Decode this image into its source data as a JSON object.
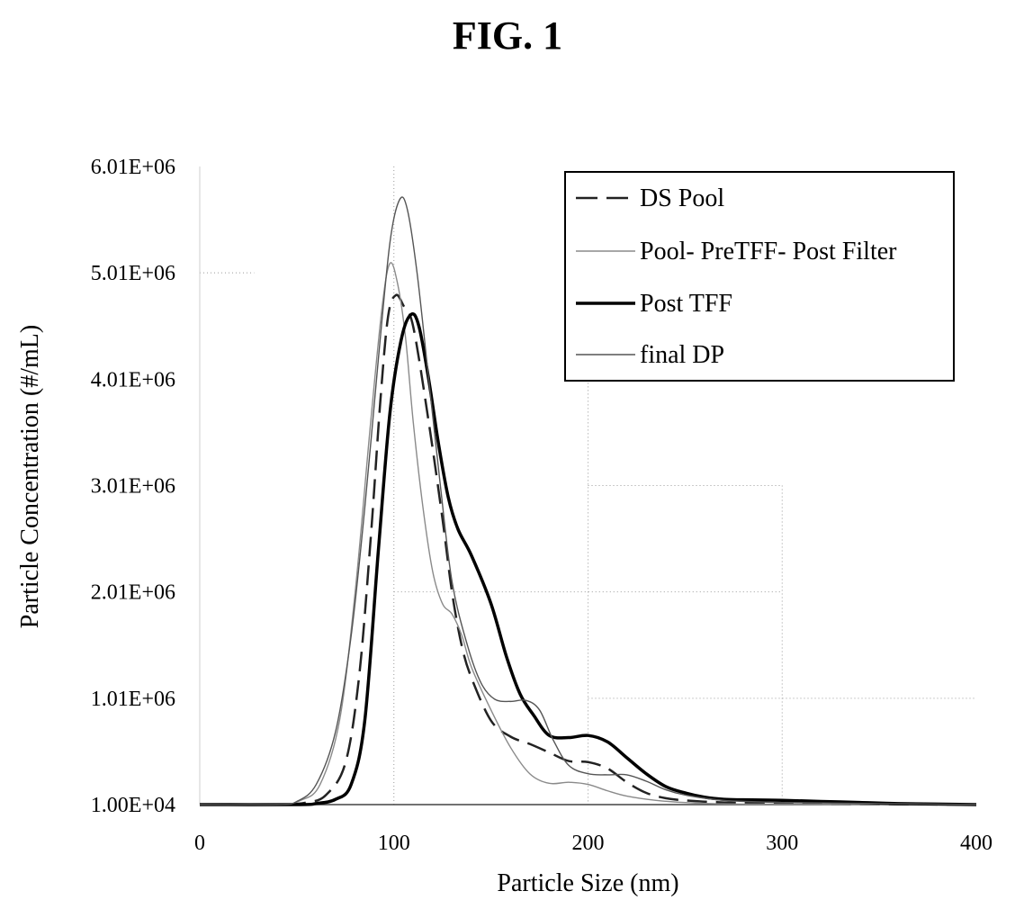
{
  "figure": {
    "title": "FIG. 1"
  },
  "chart_data": {
    "type": "line",
    "xlabel": "Particle Size (nm)",
    "ylabel": "Particle Concentration (#/mL)",
    "xlim": [
      0,
      400
    ],
    "ylim": [
      10000,
      6010000
    ],
    "x_ticks": [
      0,
      100,
      200,
      300,
      400
    ],
    "x_tick_labels": [
      "0",
      "100",
      "200",
      "300",
      "400"
    ],
    "y_ticks": [
      10000,
      1010000,
      2010000,
      3010000,
      4010000,
      5010000,
      6010000
    ],
    "y_tick_labels": [
      "1.00E+04",
      "1.01E+06",
      "2.01E+06",
      "3.01E+06",
      "4.01E+06",
      "5.01E+06",
      "6.01E+06"
    ],
    "grid": "dotted, partial",
    "legend_position": "top-right",
    "series": [
      {
        "name": "DS Pool",
        "style": "dashed",
        "color": "#222222",
        "points": [
          [
            0,
            10000
          ],
          [
            40,
            10000
          ],
          [
            55,
            30000
          ],
          [
            65,
            100000
          ],
          [
            75,
            400000
          ],
          [
            82,
            1200000
          ],
          [
            88,
            2500000
          ],
          [
            93,
            3800000
          ],
          [
            97,
            4600000
          ],
          [
            101,
            4800000
          ],
          [
            105,
            4700000
          ],
          [
            110,
            4500000
          ],
          [
            118,
            3600000
          ],
          [
            125,
            2700000
          ],
          [
            130,
            2000000
          ],
          [
            135,
            1500000
          ],
          [
            140,
            1200000
          ],
          [
            150,
            800000
          ],
          [
            160,
            650000
          ],
          [
            170,
            580000
          ],
          [
            180,
            500000
          ],
          [
            190,
            420000
          ],
          [
            200,
            410000
          ],
          [
            210,
            350000
          ],
          [
            220,
            220000
          ],
          [
            230,
            120000
          ],
          [
            240,
            70000
          ],
          [
            250,
            50000
          ],
          [
            270,
            30000
          ],
          [
            300,
            20000
          ],
          [
            330,
            15000
          ],
          [
            400,
            10000
          ]
        ]
      },
      {
        "name": "Pool- PreTFF- Post Filter",
        "style": "thin",
        "color": "#8a8a8a",
        "points": [
          [
            0,
            10000
          ],
          [
            40,
            10000
          ],
          [
            52,
            50000
          ],
          [
            62,
            200000
          ],
          [
            72,
            800000
          ],
          [
            80,
            2000000
          ],
          [
            88,
            3600000
          ],
          [
            94,
            4700000
          ],
          [
            98,
            5100000
          ],
          [
            102,
            4900000
          ],
          [
            106,
            4400000
          ],
          [
            110,
            3600000
          ],
          [
            115,
            2800000
          ],
          [
            120,
            2200000
          ],
          [
            125,
            1900000
          ],
          [
            130,
            1800000
          ],
          [
            135,
            1600000
          ],
          [
            140,
            1300000
          ],
          [
            150,
            900000
          ],
          [
            160,
            550000
          ],
          [
            170,
            300000
          ],
          [
            180,
            210000
          ],
          [
            190,
            220000
          ],
          [
            200,
            200000
          ],
          [
            210,
            140000
          ],
          [
            220,
            90000
          ],
          [
            235,
            50000
          ],
          [
            250,
            30000
          ],
          [
            280,
            15000
          ],
          [
            400,
            10000
          ]
        ]
      },
      {
        "name": "Post TFF",
        "style": "thick",
        "color": "#000000",
        "points": [
          [
            0,
            10000
          ],
          [
            50,
            10000
          ],
          [
            60,
            20000
          ],
          [
            70,
            60000
          ],
          [
            78,
            200000
          ],
          [
            85,
            800000
          ],
          [
            92,
            2400000
          ],
          [
            98,
            3700000
          ],
          [
            104,
            4400000
          ],
          [
            109,
            4620000
          ],
          [
            113,
            4500000
          ],
          [
            118,
            4000000
          ],
          [
            123,
            3400000
          ],
          [
            128,
            2900000
          ],
          [
            133,
            2600000
          ],
          [
            140,
            2350000
          ],
          [
            150,
            1900000
          ],
          [
            158,
            1400000
          ],
          [
            165,
            1050000
          ],
          [
            172,
            850000
          ],
          [
            180,
            660000
          ],
          [
            190,
            640000
          ],
          [
            200,
            660000
          ],
          [
            210,
            600000
          ],
          [
            220,
            450000
          ],
          [
            230,
            300000
          ],
          [
            240,
            180000
          ],
          [
            250,
            120000
          ],
          [
            260,
            80000
          ],
          [
            270,
            60000
          ],
          [
            280,
            55000
          ],
          [
            300,
            50000
          ],
          [
            320,
            40000
          ],
          [
            340,
            30000
          ],
          [
            360,
            20000
          ],
          [
            400,
            10000
          ]
        ]
      },
      {
        "name": "final DP",
        "style": "thin",
        "color": "#555555",
        "points": [
          [
            0,
            10000
          ],
          [
            40,
            10000
          ],
          [
            50,
            40000
          ],
          [
            60,
            200000
          ],
          [
            70,
            700000
          ],
          [
            78,
            1600000
          ],
          [
            85,
            2800000
          ],
          [
            92,
            4200000
          ],
          [
            98,
            5300000
          ],
          [
            103,
            5700000
          ],
          [
            107,
            5600000
          ],
          [
            112,
            5000000
          ],
          [
            118,
            4000000
          ],
          [
            124,
            3000000
          ],
          [
            130,
            2100000
          ],
          [
            138,
            1500000
          ],
          [
            145,
            1150000
          ],
          [
            152,
            1000000
          ],
          [
            160,
            980000
          ],
          [
            168,
            990000
          ],
          [
            175,
            900000
          ],
          [
            182,
            620000
          ],
          [
            190,
            380000
          ],
          [
            200,
            300000
          ],
          [
            210,
            290000
          ],
          [
            220,
            290000
          ],
          [
            230,
            230000
          ],
          [
            240,
            150000
          ],
          [
            250,
            100000
          ],
          [
            270,
            50000
          ],
          [
            300,
            30000
          ],
          [
            350,
            20000
          ],
          [
            400,
            10000
          ]
        ]
      }
    ]
  }
}
